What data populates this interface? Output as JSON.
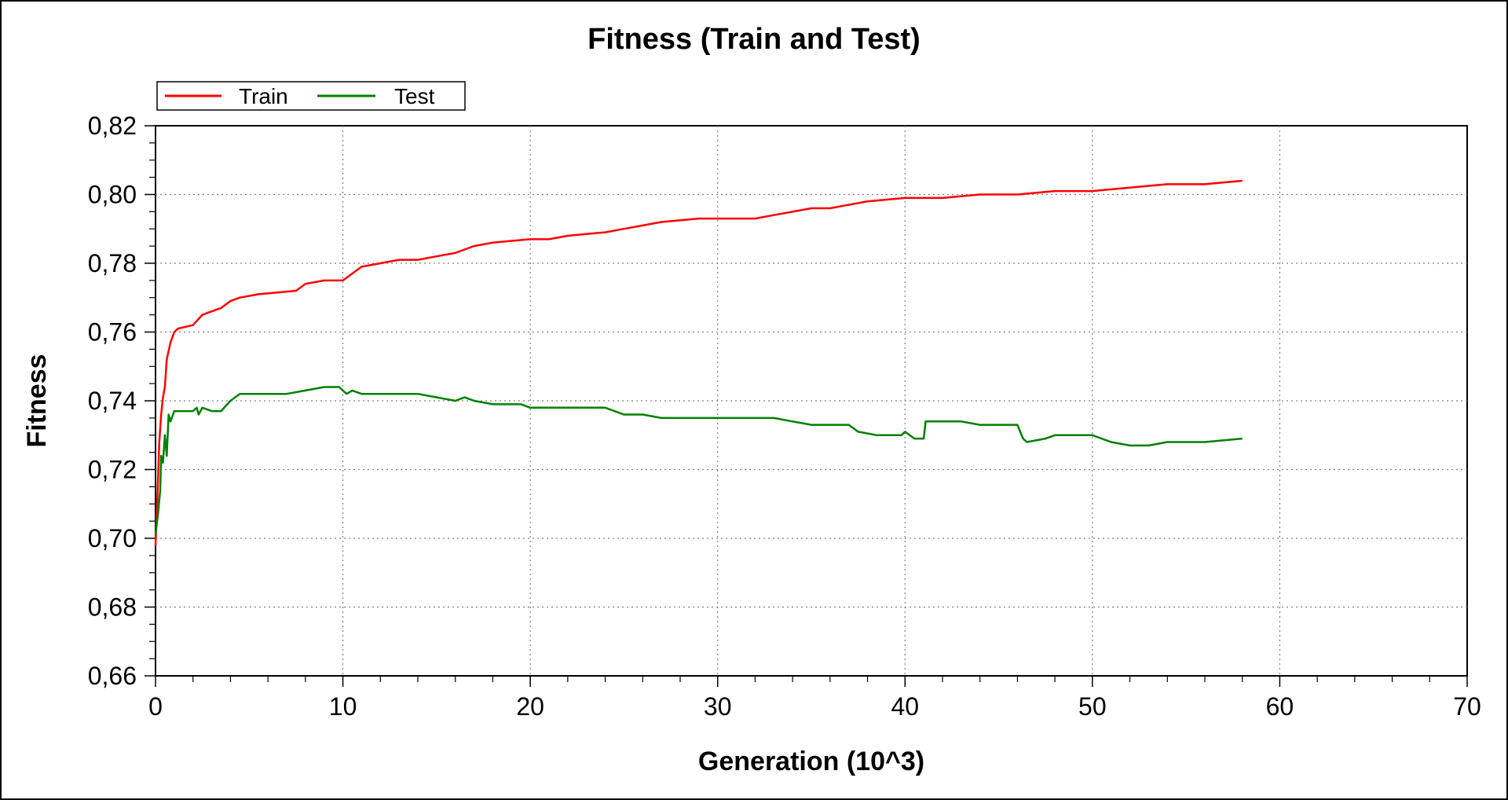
{
  "chart_data": {
    "type": "line",
    "title": "Fitness (Train and Test)",
    "xlabel": "Generation (10^3)",
    "ylabel": "Fitness",
    "xlim": [
      0,
      70
    ],
    "ylim": [
      0.66,
      0.82
    ],
    "x_ticks": [
      "0",
      "10",
      "20",
      "30",
      "40",
      "50",
      "60",
      "70"
    ],
    "x_tick_values": [
      0,
      10,
      20,
      30,
      40,
      50,
      60,
      70
    ],
    "y_ticks": [
      "0,66",
      "0,68",
      "0,70",
      "0,72",
      "0,74",
      "0,76",
      "0,78",
      "0,80",
      "0,82"
    ],
    "y_tick_values": [
      0.66,
      0.68,
      0.7,
      0.72,
      0.74,
      0.76,
      0.78,
      0.8,
      0.82
    ],
    "grid": true,
    "legend_position": "top-left",
    "series": [
      {
        "name": "Train",
        "color": "#ff0000",
        "points": [
          [
            0,
            0.698
          ],
          [
            0.1,
            0.712
          ],
          [
            0.2,
            0.728
          ],
          [
            0.3,
            0.736
          ],
          [
            0.4,
            0.741
          ],
          [
            0.5,
            0.744
          ],
          [
            0.6,
            0.752
          ],
          [
            0.8,
            0.757
          ],
          [
            1.0,
            0.76
          ],
          [
            1.2,
            0.761
          ],
          [
            2.0,
            0.762
          ],
          [
            2.5,
            0.765
          ],
          [
            3.0,
            0.766
          ],
          [
            3.5,
            0.767
          ],
          [
            4.0,
            0.769
          ],
          [
            4.5,
            0.77
          ],
          [
            5.5,
            0.771
          ],
          [
            7.5,
            0.772
          ],
          [
            8.0,
            0.774
          ],
          [
            9.0,
            0.775
          ],
          [
            10.0,
            0.775
          ],
          [
            10.5,
            0.777
          ],
          [
            11.0,
            0.779
          ],
          [
            12.0,
            0.78
          ],
          [
            13.0,
            0.781
          ],
          [
            14.0,
            0.781
          ],
          [
            15.0,
            0.782
          ],
          [
            16.0,
            0.783
          ],
          [
            16.5,
            0.784
          ],
          [
            17.0,
            0.785
          ],
          [
            18.0,
            0.786
          ],
          [
            20.0,
            0.787
          ],
          [
            21.0,
            0.787
          ],
          [
            22.0,
            0.788
          ],
          [
            24.0,
            0.789
          ],
          [
            25.0,
            0.79
          ],
          [
            26.0,
            0.791
          ],
          [
            27.0,
            0.792
          ],
          [
            29.0,
            0.793
          ],
          [
            30.0,
            0.793
          ],
          [
            32.0,
            0.793
          ],
          [
            33.0,
            0.794
          ],
          [
            34.0,
            0.795
          ],
          [
            35.0,
            0.796
          ],
          [
            36.0,
            0.796
          ],
          [
            38.0,
            0.798
          ],
          [
            40.0,
            0.799
          ],
          [
            42.0,
            0.799
          ],
          [
            44.0,
            0.8
          ],
          [
            46.0,
            0.8
          ],
          [
            48.0,
            0.801
          ],
          [
            50.0,
            0.801
          ],
          [
            52.0,
            0.802
          ],
          [
            54.0,
            0.803
          ],
          [
            56.0,
            0.803
          ],
          [
            58.0,
            0.804
          ]
        ]
      },
      {
        "name": "Test",
        "color": "#008000",
        "points": [
          [
            0,
            0.701
          ],
          [
            0.15,
            0.708
          ],
          [
            0.25,
            0.714
          ],
          [
            0.3,
            0.724
          ],
          [
            0.4,
            0.722
          ],
          [
            0.5,
            0.73
          ],
          [
            0.6,
            0.724
          ],
          [
            0.7,
            0.736
          ],
          [
            0.8,
            0.734
          ],
          [
            1.0,
            0.737
          ],
          [
            1.5,
            0.737
          ],
          [
            2.0,
            0.737
          ],
          [
            2.2,
            0.738
          ],
          [
            2.3,
            0.736
          ],
          [
            2.5,
            0.738
          ],
          [
            3.0,
            0.737
          ],
          [
            3.5,
            0.737
          ],
          [
            4.0,
            0.74
          ],
          [
            4.5,
            0.742
          ],
          [
            6.0,
            0.742
          ],
          [
            7.0,
            0.742
          ],
          [
            8.0,
            0.743
          ],
          [
            9.0,
            0.744
          ],
          [
            9.8,
            0.744
          ],
          [
            10.2,
            0.742
          ],
          [
            10.5,
            0.743
          ],
          [
            11.0,
            0.742
          ],
          [
            12.0,
            0.742
          ],
          [
            13.0,
            0.742
          ],
          [
            14.0,
            0.742
          ],
          [
            15.0,
            0.741
          ],
          [
            16.0,
            0.74
          ],
          [
            16.5,
            0.741
          ],
          [
            17.0,
            0.74
          ],
          [
            18.0,
            0.739
          ],
          [
            19.5,
            0.739
          ],
          [
            20.0,
            0.738
          ],
          [
            22.0,
            0.738
          ],
          [
            24.0,
            0.738
          ],
          [
            25.0,
            0.736
          ],
          [
            26.0,
            0.736
          ],
          [
            27.0,
            0.735
          ],
          [
            28.0,
            0.735
          ],
          [
            30.0,
            0.735
          ],
          [
            33.0,
            0.735
          ],
          [
            34.0,
            0.734
          ],
          [
            35.0,
            0.733
          ],
          [
            37.0,
            0.733
          ],
          [
            37.5,
            0.731
          ],
          [
            38.5,
            0.73
          ],
          [
            39.8,
            0.73
          ],
          [
            40.0,
            0.731
          ],
          [
            40.5,
            0.729
          ],
          [
            41.0,
            0.729
          ],
          [
            41.1,
            0.734
          ],
          [
            43.0,
            0.734
          ],
          [
            44.0,
            0.733
          ],
          [
            46.0,
            0.733
          ],
          [
            46.3,
            0.729
          ],
          [
            46.5,
            0.728
          ],
          [
            47.5,
            0.729
          ],
          [
            48.0,
            0.73
          ],
          [
            50.0,
            0.73
          ],
          [
            51.0,
            0.728
          ],
          [
            52.0,
            0.727
          ],
          [
            53.0,
            0.727
          ],
          [
            54.0,
            0.728
          ],
          [
            56.0,
            0.728
          ],
          [
            58.0,
            0.729
          ]
        ]
      }
    ]
  }
}
